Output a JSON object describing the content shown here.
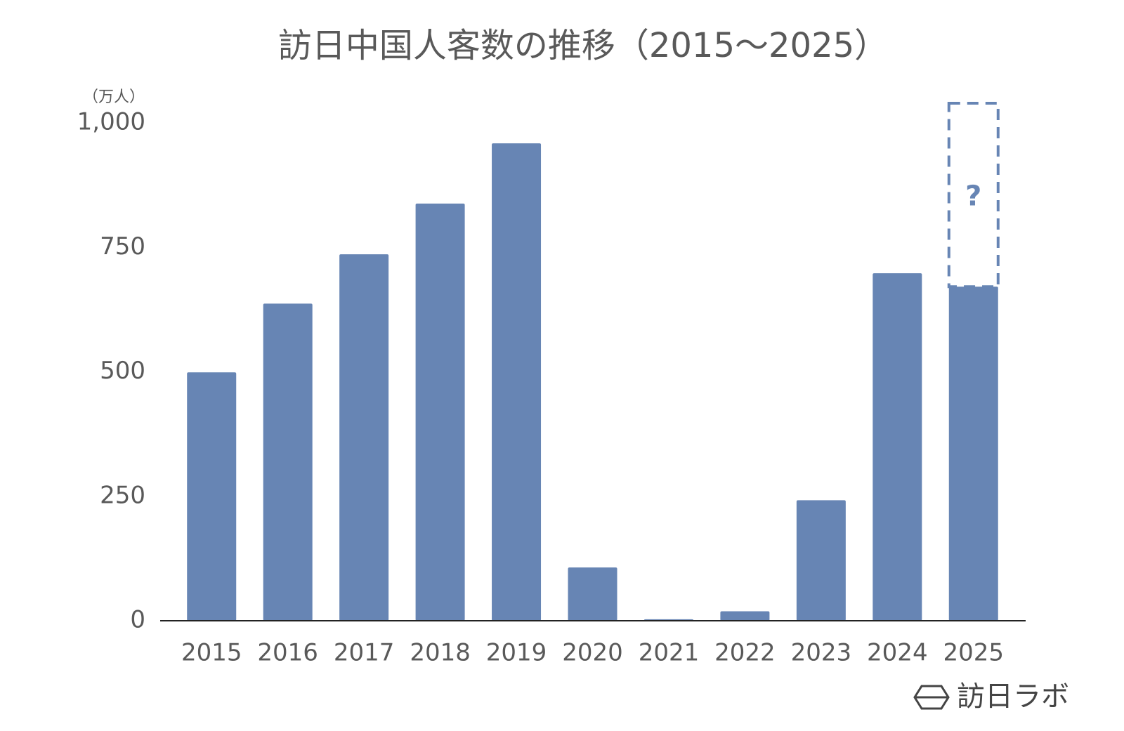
{
  "chart_data": {
    "type": "bar",
    "title": "訪日中国人客数の推移（2015～2025）",
    "y_unit": "（万人）",
    "categories": [
      "2015",
      "2016",
      "2017",
      "2018",
      "2019",
      "2020",
      "2021",
      "2022",
      "2023",
      "2024",
      "2025"
    ],
    "values": [
      499,
      637,
      736,
      838,
      959,
      107,
      3,
      19,
      242,
      698,
      671
    ],
    "color": "#6785b4",
    "ylim": [
      0,
      1000
    ],
    "yticks": [
      0,
      250,
      500,
      750,
      {
        "value": 1000,
        "label": "1,000"
      }
    ],
    "grid": false,
    "annotation": "?",
    "source": "訪日ラボ"
  }
}
